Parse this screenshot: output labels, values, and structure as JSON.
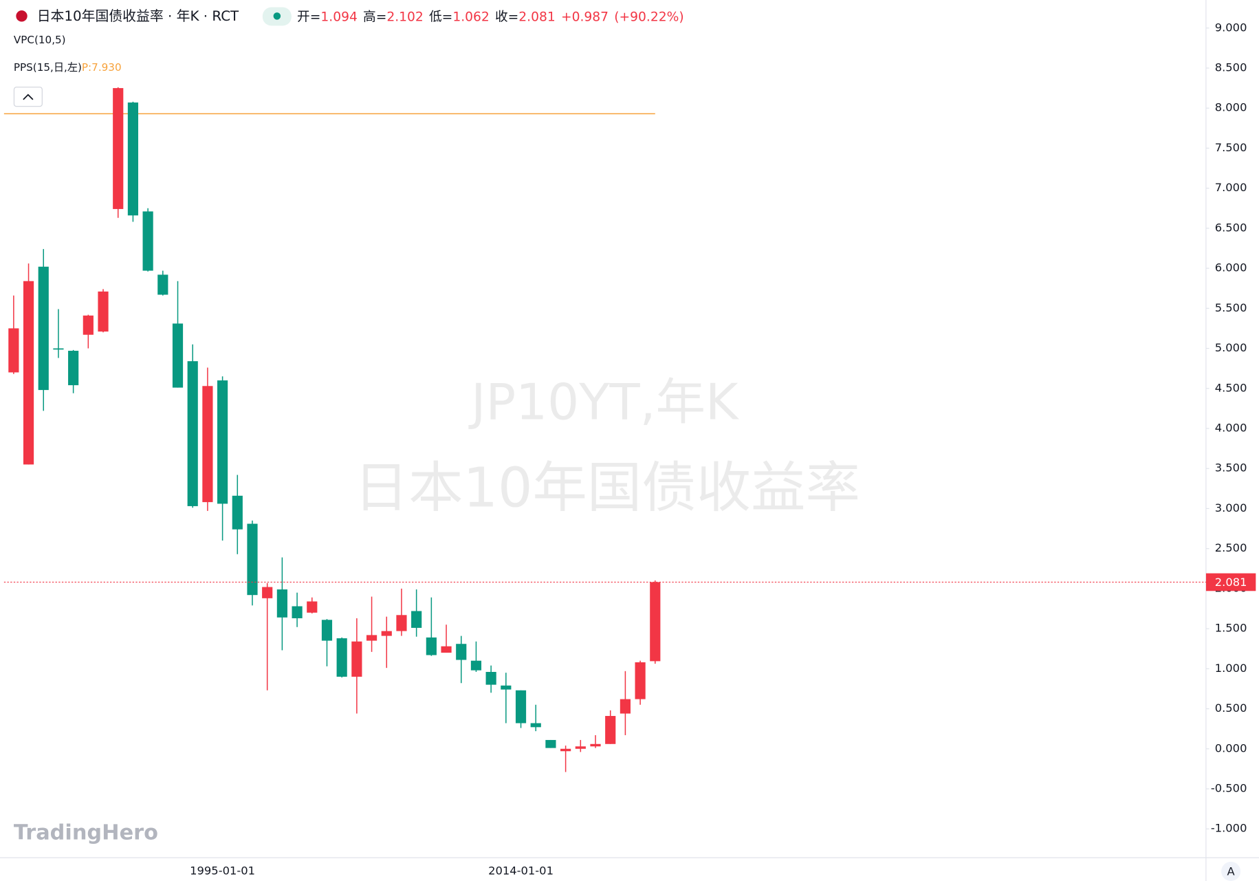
{
  "chart_data": {
    "type": "candlestick",
    "title": "日本10年国债收益率 · 年K · RCT",
    "open_label": "开=",
    "high_label": "高=",
    "low_label": "低=",
    "close_label": "收=",
    "change": "+0.987",
    "change_pct": "(+90.22%)",
    "indicator": "VPC(10,5)",
    "pps": {
      "name": "PPS(15,日,左)",
      "label": "P:7.930",
      "value": 7.93,
      "color": "#f7a23b"
    },
    "watermark": [
      "JP10YT,年K",
      "日本10年国债收益率"
    ],
    "logo": "TradingHero",
    "scale_button": "A",
    "up_color": "#f23645",
    "down_color": "#089981",
    "categories": [
      null,
      null,
      null,
      null,
      null,
      null,
      null,
      null,
      null,
      null,
      null,
      null,
      null,
      null,
      "1995-01-01",
      null,
      null,
      null,
      null,
      null,
      null,
      null,
      null,
      null,
      null,
      null,
      null,
      null,
      null,
      null,
      null,
      null,
      null,
      null,
      "2014-01-01",
      null,
      null,
      null,
      null,
      null,
      null,
      null,
      null,
      null
    ],
    "open": [
      4.7,
      3.55,
      6.02,
      5.0,
      4.97,
      5.17,
      5.21,
      6.74,
      8.07,
      6.71,
      5.92,
      5.31,
      4.84,
      3.08,
      4.6,
      3.16,
      2.81,
      1.88,
      1.99,
      1.78,
      1.7,
      1.61,
      1.38,
      0.9,
      1.35,
      1.41,
      1.47,
      1.72,
      1.39,
      1.2,
      1.31,
      1.1,
      0.96,
      0.79,
      0.73,
      0.32,
      0.11,
      -0.03,
      0.0,
      0.03,
      0.06,
      0.44,
      0.62,
      1.094
    ],
    "high": [
      5.66,
      6.06,
      6.24,
      5.49,
      4.98,
      5.42,
      5.74,
      8.26,
      8.08,
      6.75,
      5.97,
      5.84,
      5.05,
      4.76,
      4.65,
      3.42,
      2.85,
      2.07,
      2.39,
      1.95,
      1.89,
      1.62,
      1.39,
      1.63,
      1.9,
      1.65,
      2.0,
      1.99,
      1.89,
      1.55,
      1.41,
      1.34,
      1.04,
      0.95,
      0.73,
      0.55,
      0.11,
      0.04,
      0.11,
      0.17,
      0.48,
      0.97,
      1.1,
      2.102
    ],
    "low": [
      4.68,
      3.55,
      4.22,
      4.88,
      4.44,
      5.0,
      5.2,
      6.63,
      6.58,
      5.96,
      5.66,
      4.51,
      3.01,
      2.97,
      2.6,
      2.43,
      1.79,
      0.73,
      1.23,
      1.52,
      1.69,
      1.03,
      0.89,
      0.44,
      1.21,
      1.01,
      1.41,
      1.4,
      1.16,
      1.2,
      0.82,
      0.96,
      0.7,
      0.32,
      0.26,
      0.22,
      0.01,
      -0.29,
      -0.04,
      0.01,
      0.06,
      0.17,
      0.55,
      1.062
    ],
    "close": [
      5.25,
      5.84,
      4.48,
      4.99,
      4.54,
      5.41,
      5.71,
      8.25,
      6.66,
      5.97,
      5.67,
      4.51,
      3.03,
      4.53,
      3.06,
      2.74,
      1.92,
      2.02,
      1.64,
      1.63,
      1.84,
      1.35,
      0.9,
      1.34,
      1.42,
      1.47,
      1.67,
      1.51,
      1.17,
      1.28,
      1.11,
      0.98,
      0.8,
      0.74,
      0.32,
      0.27,
      0.01,
      0.0,
      0.03,
      0.06,
      0.41,
      0.62,
      1.08,
      2.081
    ],
    "ylim": [
      -1.36,
      9.35
    ],
    "yticks": [
      {
        "value": -1,
        "label": "-1.000"
      },
      {
        "value": -0.5,
        "label": "-0.500"
      },
      {
        "value": 0,
        "label": "0.000"
      },
      {
        "value": 0.5,
        "label": "0.500"
      },
      {
        "value": 1,
        "label": "1.000"
      },
      {
        "value": 1.5,
        "label": "1.500"
      },
      {
        "value": 2,
        "label": "2.000"
      },
      {
        "value": 2.5,
        "label": "2.500"
      },
      {
        "value": 3,
        "label": "3.000"
      },
      {
        "value": 3.5,
        "label": "3.500"
      },
      {
        "value": 4,
        "label": "4.000"
      },
      {
        "value": 4.5,
        "label": "4.500"
      },
      {
        "value": 5,
        "label": "5.000"
      },
      {
        "value": 5.5,
        "label": "5.500"
      },
      {
        "value": 6,
        "label": "6.000"
      },
      {
        "value": 6.5,
        "label": "6.500"
      },
      {
        "value": 7,
        "label": "7.000"
      },
      {
        "value": 7.5,
        "label": "7.500"
      },
      {
        "value": 8,
        "label": "8.000"
      },
      {
        "value": 8.5,
        "label": "8.500"
      },
      {
        "value": 9,
        "label": "9.000"
      }
    ],
    "grid": false
  }
}
